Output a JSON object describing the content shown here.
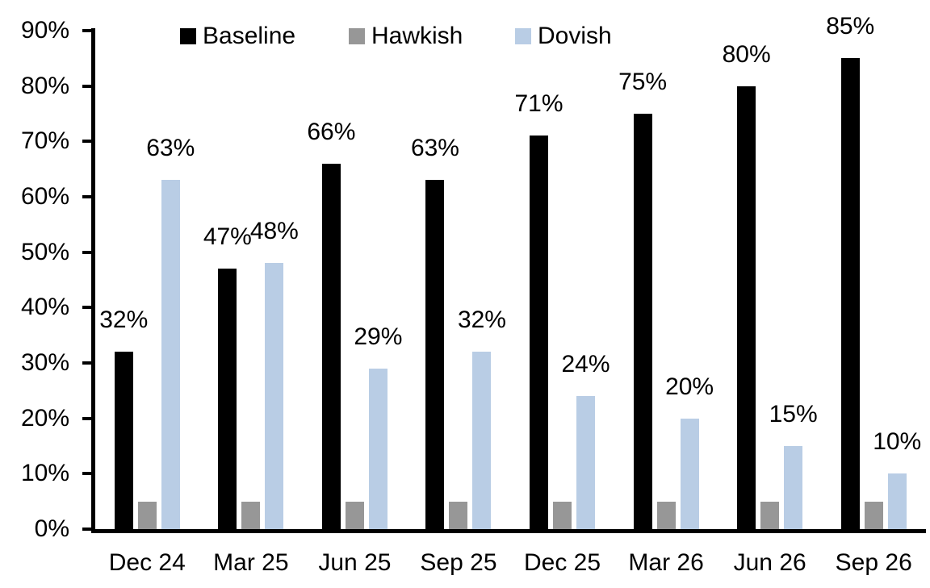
{
  "chart_data": {
    "type": "bar",
    "title": "",
    "xlabel": "",
    "ylabel": "",
    "categories": [
      "Dec 24",
      "Mar 25",
      "Jun 25",
      "Sep 25",
      "Dec 25",
      "Mar 26",
      "Jun 26",
      "Sep 26"
    ],
    "series": [
      {
        "name": "Baseline",
        "color": "#000000",
        "values": [
          32,
          47,
          66,
          63,
          71,
          75,
          80,
          85
        ],
        "data_labels": [
          "32%",
          "47%",
          "66%",
          "63%",
          "71%",
          "75%",
          "80%",
          "85%"
        ]
      },
      {
        "name": "Hawkish",
        "color": "#979797",
        "values": [
          5,
          5,
          5,
          5,
          5,
          5,
          5,
          5
        ],
        "data_labels": []
      },
      {
        "name": "Dovish",
        "color": "#B9CDE5",
        "values": [
          63,
          48,
          29,
          32,
          24,
          20,
          15,
          10
        ],
        "data_labels": [
          "63%",
          "48%",
          "29%",
          "32%",
          "24%",
          "20%",
          "15%",
          "10%"
        ]
      }
    ],
    "ylim": [
      0,
      90
    ],
    "ytick_step": 10,
    "ytick_labels": [
      "0%",
      "10%",
      "20%",
      "30%",
      "40%",
      "50%",
      "60%",
      "70%",
      "80%",
      "90%"
    ],
    "legend_position": "top",
    "grid": false,
    "axis_color": "#000000",
    "background_color": "#FFFFFF"
  }
}
